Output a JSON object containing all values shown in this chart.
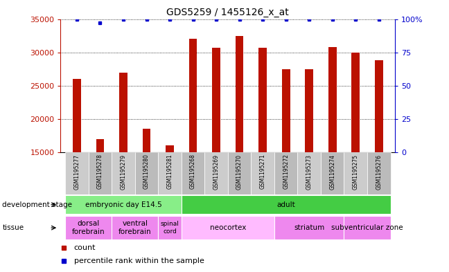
{
  "title": "GDS5259 / 1455126_x_at",
  "samples": [
    "GSM1195277",
    "GSM1195278",
    "GSM1195279",
    "GSM1195280",
    "GSM1195281",
    "GSM1195268",
    "GSM1195269",
    "GSM1195270",
    "GSM1195271",
    "GSM1195272",
    "GSM1195273",
    "GSM1195274",
    "GSM1195275",
    "GSM1195276"
  ],
  "counts": [
    26000,
    17000,
    27000,
    18500,
    16000,
    32000,
    30700,
    32500,
    30700,
    27500,
    27500,
    30800,
    30000,
    28800
  ],
  "percentiles": [
    100,
    97,
    100,
    100,
    100,
    100,
    100,
    100,
    100,
    100,
    100,
    100,
    100,
    100
  ],
  "ylim": [
    15000,
    35000
  ],
  "yticks": [
    15000,
    20000,
    25000,
    30000,
    35000
  ],
  "right_yticks": [
    0,
    25,
    50,
    75,
    100
  ],
  "right_ylim": [
    0,
    100
  ],
  "bar_color": "#bb1100",
  "dot_color": "#0000cc",
  "background_color": "#ffffff",
  "dev_stage_groups": [
    {
      "label": "embryonic day E14.5",
      "start": 0,
      "end": 5,
      "color": "#88ee88"
    },
    {
      "label": "adult",
      "start": 5,
      "end": 14,
      "color": "#44cc44"
    }
  ],
  "tissue_groups": [
    {
      "label": "dorsal\nforebrain",
      "start": 0,
      "end": 2,
      "color": "#ee88ee"
    },
    {
      "label": "ventral\nforebrain",
      "start": 2,
      "end": 4,
      "color": "#ee88ee"
    },
    {
      "label": "spinal\ncord",
      "start": 4,
      "end": 5,
      "color": "#ee88ee"
    },
    {
      "label": "neocortex",
      "start": 5,
      "end": 9,
      "color": "#ffbbff"
    },
    {
      "label": "striatum",
      "start": 9,
      "end": 12,
      "color": "#ee88ee"
    },
    {
      "label": "subventricular zone",
      "start": 12,
      "end": 14,
      "color": "#ee88ee"
    }
  ],
  "left_label_dev": "development stage",
  "left_label_tissue": "tissue",
  "legend_count_label": "count",
  "legend_pct_label": "percentile rank within the sample",
  "sample_box_color1": "#cccccc",
  "sample_box_color2": "#bbbbbb"
}
